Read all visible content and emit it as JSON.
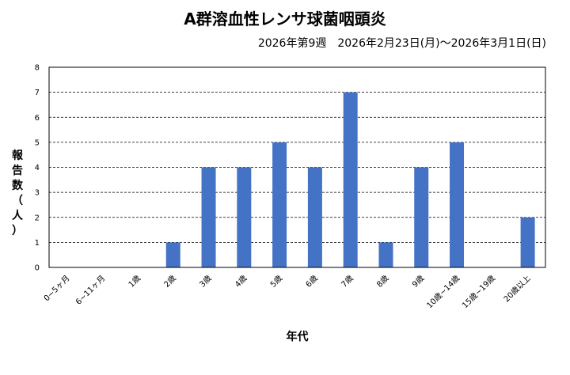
{
  "chart_data": {
    "type": "bar",
    "title": "A群溶血性レンサ球菌咽頭炎",
    "subtitle": "2026年第9週　2026年2月23日(月)～2026年3月1日(日)",
    "xlabel": "年代",
    "ylabel": "報告数（人）",
    "ylabel_chars": [
      "報",
      "告",
      "数",
      "（",
      "人",
      "）"
    ],
    "categories": [
      "0~5ヶ月",
      "6~11ヶ月",
      "1歳",
      "2歳",
      "3歳",
      "4歳",
      "5歳",
      "6歳",
      "7歳",
      "8歳",
      "9歳",
      "10歳~14歳",
      "15歳~19歳",
      "20歳以上"
    ],
    "values": [
      0,
      0,
      0,
      1,
      4,
      4,
      5,
      4,
      7,
      1,
      4,
      5,
      0,
      2
    ],
    "ylim": [
      0,
      8
    ],
    "yticks": [
      0,
      1,
      2,
      3,
      4,
      5,
      6,
      7,
      8
    ],
    "grid": true,
    "bar_color": "#4472C4"
  }
}
